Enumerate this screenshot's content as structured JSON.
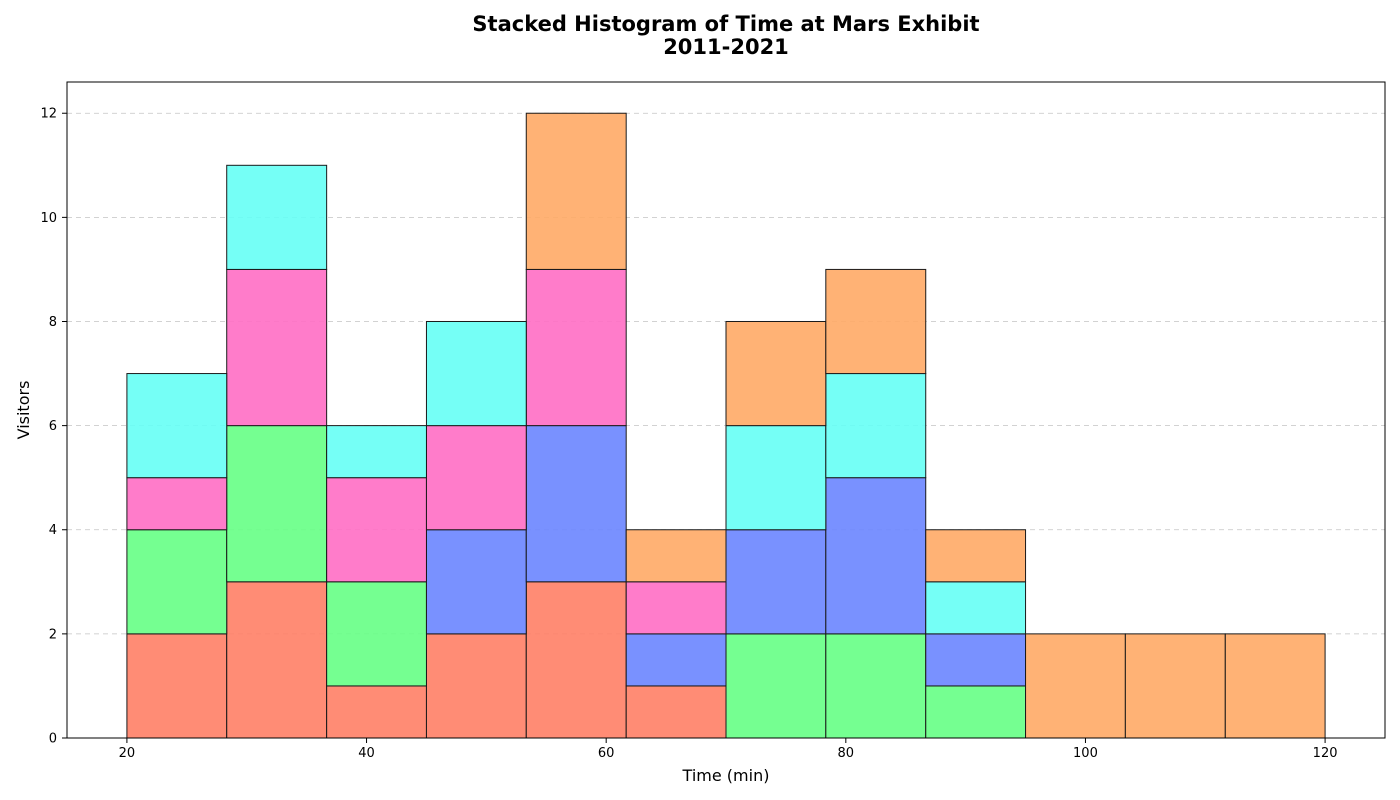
{
  "chart_data": {
    "type": "bar",
    "subtype": "stacked-histogram",
    "title": "Stacked Histogram of Time at Mars Exhibit",
    "subtitle": "2011-2021",
    "xlabel": "Time (min)",
    "ylabel": "Visitors",
    "xlim": [
      15,
      125
    ],
    "ylim": [
      0,
      12.6
    ],
    "xticks": [
      20,
      40,
      60,
      80,
      100,
      120
    ],
    "yticks": [
      0,
      2,
      4,
      6,
      8,
      10,
      12
    ],
    "grid": "y-dashed",
    "bin_edges": [
      20,
      28.33,
      36.67,
      45,
      53.33,
      61.67,
      70,
      78.33,
      86.67,
      95,
      103.33,
      111.67,
      120
    ],
    "series": [
      {
        "color": "#ff7f66",
        "values": [
          2,
          3,
          1,
          2,
          3,
          1,
          0,
          0,
          0,
          0,
          0,
          0
        ]
      },
      {
        "color": "#66ff85",
        "values": [
          2,
          3,
          2,
          0,
          0,
          0,
          2,
          2,
          1,
          0,
          0,
          0
        ]
      },
      {
        "color": "#6a85ff",
        "values": [
          0,
          0,
          0,
          2,
          3,
          1,
          2,
          3,
          1,
          0,
          0,
          0
        ]
      },
      {
        "color": "#ff6ec4",
        "values": [
          1,
          3,
          2,
          2,
          3,
          1,
          0,
          0,
          0,
          0,
          0,
          0
        ]
      },
      {
        "color": "#66fff5",
        "values": [
          2,
          2,
          1,
          2,
          0,
          0,
          2,
          2,
          1,
          0,
          0,
          0
        ]
      },
      {
        "color": "#ffaa66",
        "values": [
          0,
          0,
          0,
          0,
          3,
          1,
          2,
          2,
          1,
          2,
          2,
          2
        ]
      }
    ]
  }
}
